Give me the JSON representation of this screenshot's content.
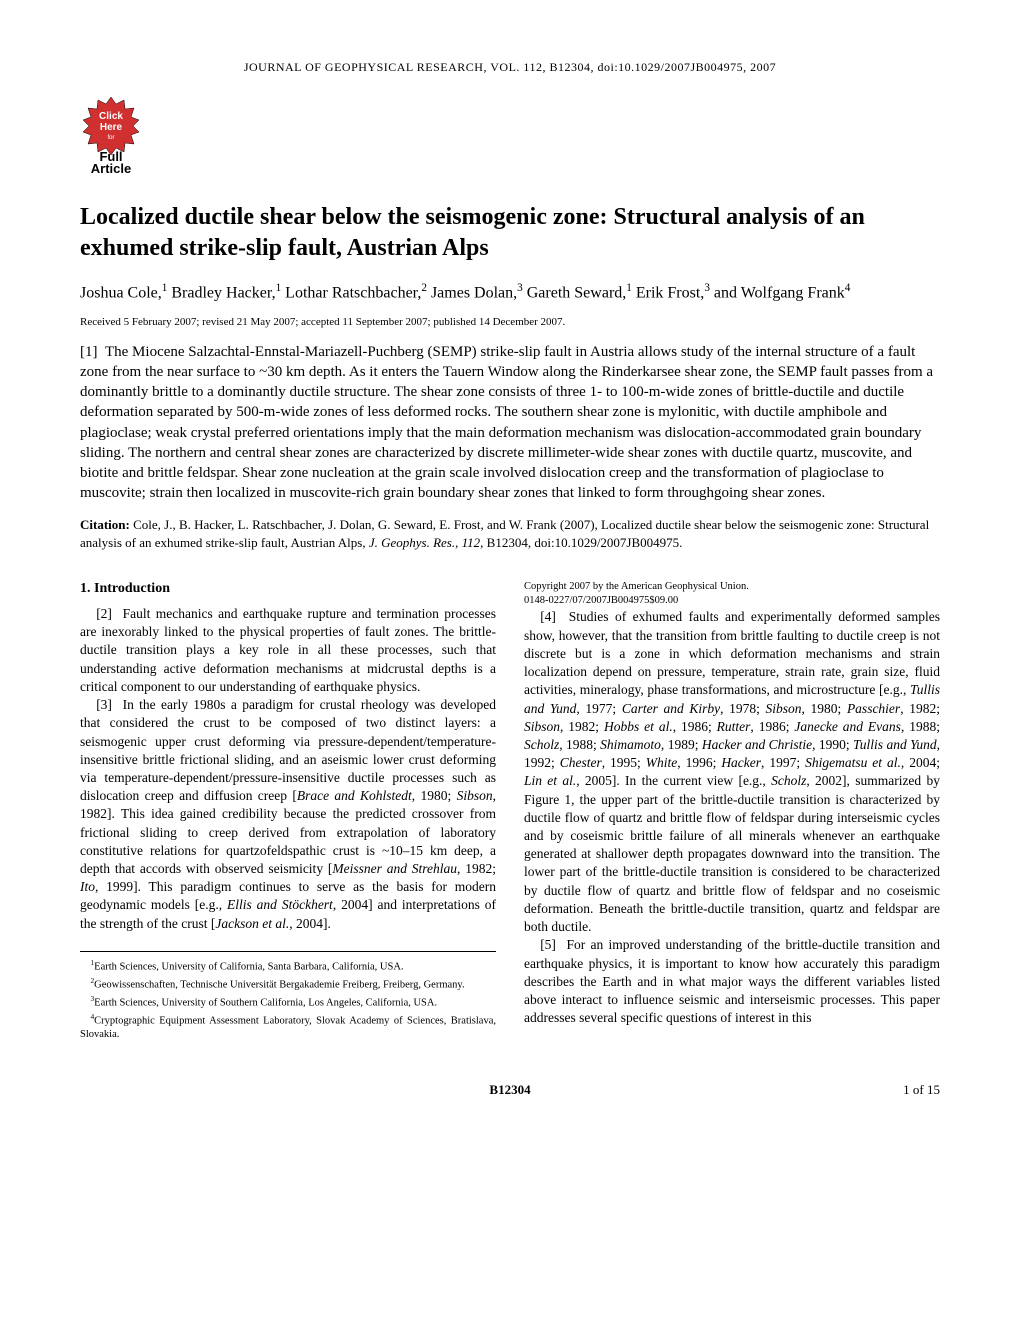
{
  "header": {
    "journal_line": "JOURNAL OF GEOPHYSICAL RESEARCH, VOL. 112, B12304, doi:10.1029/2007JB004975, 2007"
  },
  "badge": {
    "line1": "Click",
    "line2": "Here",
    "line3": "for",
    "line4": "Full",
    "line5": "Article",
    "bg_color": "#ffffff",
    "border_color": "#000000",
    "starburst_fill": "#d03030"
  },
  "title": "Localized ductile shear below the seismogenic zone: Structural analysis of an exhumed strike-slip fault, Austrian Alps",
  "authors_html": "Joshua Cole,<sup>1</sup> Bradley Hacker,<sup>1</sup> Lothar Ratschbacher,<sup>2</sup> James Dolan,<sup>3</sup> Gareth Seward,<sup>1</sup> Erik Frost,<sup>3</sup> and Wolfgang Frank<sup>4</sup>",
  "received": "Received 5 February 2007; revised 21 May 2007; accepted 11 September 2007; published 14 December 2007.",
  "abstract_html": "[1]&nbsp;&nbsp;The Miocene Salzachtal-Ennstal-Mariazell-Puchberg (SEMP) strike-slip fault in Austria allows study of the internal structure of a fault zone from the near surface to ~30 km depth. As it enters the Tauern Window along the Rinderkarsee shear zone, the SEMP fault passes from a dominantly brittle to a dominantly ductile structure. The shear zone consists of three 1- to 100-m-wide zones of brittle-ductile and ductile deformation separated by 500-m-wide zones of less deformed rocks. The southern shear zone is mylonitic, with ductile amphibole and plagioclase; weak crystal preferred orientations imply that the main deformation mechanism was dislocation-accommodated grain boundary sliding. The northern and central shear zones are characterized by discrete millimeter-wide shear zones with ductile quartz, muscovite, and biotite and brittle feldspar. Shear zone nucleation at the grain scale involved dislocation creep and the transformation of plagioclase to muscovite; strain then localized in muscovite-rich grain boundary shear zones that linked to form throughgoing shear zones.",
  "citation": {
    "label": "Citation:",
    "text_html": "&nbsp;Cole, J., B. Hacker, L. Ratschbacher, J. Dolan, G. Seward, E. Frost, and W. Frank (2007), Localized ductile shear below the seismogenic zone: Structural analysis of an exhumed strike-slip fault, Austrian Alps, <span class=\"italic\">J. Geophys. Res.</span>, <span class=\"italic\">112</span>, B12304, doi:10.1029/2007JB004975."
  },
  "section1": {
    "heading": "1.   Introduction",
    "p2_html": "[2]&nbsp;&nbsp;Fault mechanics and earthquake rupture and termination processes are inexorably linked to the physical properties of fault zones. The brittle-ductile transition plays a key role in all these processes, such that understanding active deformation mechanisms at midcrustal depths is a critical component to our understanding of earthquake physics.",
    "p3_html": "[3]&nbsp;&nbsp;In the early 1980s a paradigm for crustal rheology was developed that considered the crust to be composed of two distinct layers: a seismogenic upper crust deforming via pressure-dependent/temperature-insensitive brittle frictional sliding, and an aseismic lower crust deforming via temperature-dependent/pressure-insensitive ductile processes such as dislocation creep and diffusion creep [<span class=\"italic\">Brace and Kohlstedt</span>, 1980; <span class=\"italic\">Sibson</span>, 1982]. This idea gained credibility because the predicted crossover from frictional sliding to creep derived from extrapolation of laboratory constitutive relations for quartzofeldspathic crust is ~10–15 km deep, a depth that accords with observed seismicity [<span class=\"italic\">Meissner and Strehlau</span>, 1982; <span class=\"italic\">Ito</span>, 1999]. This paradigm continues to serve as the basis for modern geodynamic models [e.g., <span class=\"italic\">Ellis and Stöckhert</span>, 2004] and interpretations of the strength of the crust [<span class=\"italic\">Jackson et al.</span>, 2004].",
    "p4_html": "[4]&nbsp;&nbsp;Studies of exhumed faults and experimentally deformed samples show, however, that the transition from brittle faulting to ductile creep is not discrete but is a zone in which deformation mechanisms and strain localization depend on pressure, temperature, strain rate, grain size, fluid activities, mineralogy, phase transformations, and microstructure [e.g., <span class=\"italic\">Tullis and Yund</span>, 1977; <span class=\"italic\">Carter and Kirby</span>, 1978; <span class=\"italic\">Sibson</span>, 1980; <span class=\"italic\">Passchier</span>, 1982; <span class=\"italic\">Sibson</span>, 1982; <span class=\"italic\">Hobbs et al.</span>, 1986; <span class=\"italic\">Rutter</span>, 1986; <span class=\"italic\">Janecke and Evans</span>, 1988; <span class=\"italic\">Scholz</span>, 1988; <span class=\"italic\">Shimamoto</span>, 1989; <span class=\"italic\">Hacker and Christie</span>, 1990; <span class=\"italic\">Tullis and Yund</span>, 1992; <span class=\"italic\">Chester</span>, 1995; <span class=\"italic\">White</span>, 1996; <span class=\"italic\">Hacker</span>, 1997; <span class=\"italic\">Shigematsu et al.</span>, 2004; <span class=\"italic\">Lin et al.</span>, 2005]. In the current view [e.g., <span class=\"italic\">Scholz</span>, 2002], summarized by Figure 1, the upper part of the brittle-ductile transition is characterized by ductile flow of quartz and brittle flow of feldspar during interseismic cycles and by coseismic brittle failure of all minerals whenever an earthquake generated at shallower depth propagates downward into the transition. The lower part of the brittle-ductile transition is considered to be characterized by ductile flow of quartz and brittle flow of feldspar and no coseismic deformation. Beneath the brittle-ductile transition, quartz and feldspar are both ductile.",
    "p5_html": "[5]&nbsp;&nbsp;For an improved understanding of the brittle-ductile transition and earthquake physics, it is important to know how accurately this paradigm describes the Earth and in what major ways the different variables listed above interact to influence seismic and interseismic processes. This paper addresses several specific questions of interest in this"
  },
  "footnotes": {
    "f1_html": "<sup>1</sup>Earth Sciences, University of California, Santa Barbara, California, USA.",
    "f2_html": "<sup>2</sup>Geowissenschaften, Technische Universität Bergakademie Freiberg, Freiberg, Germany.",
    "f3_html": "<sup>3</sup>Earth Sciences, University of Southern California, Los Angeles, California, USA.",
    "f4_html": "<sup>4</sup>Cryptographic Equipment Assessment Laboratory, Slovak Academy of Sciences, Bratislava, Slovakia."
  },
  "copyright": {
    "line1": "Copyright 2007 by the American Geophysical Union.",
    "line2": "0148-0227/07/2007JB004975$09.00"
  },
  "footer": {
    "center": "B12304",
    "right": "1 of 15"
  }
}
